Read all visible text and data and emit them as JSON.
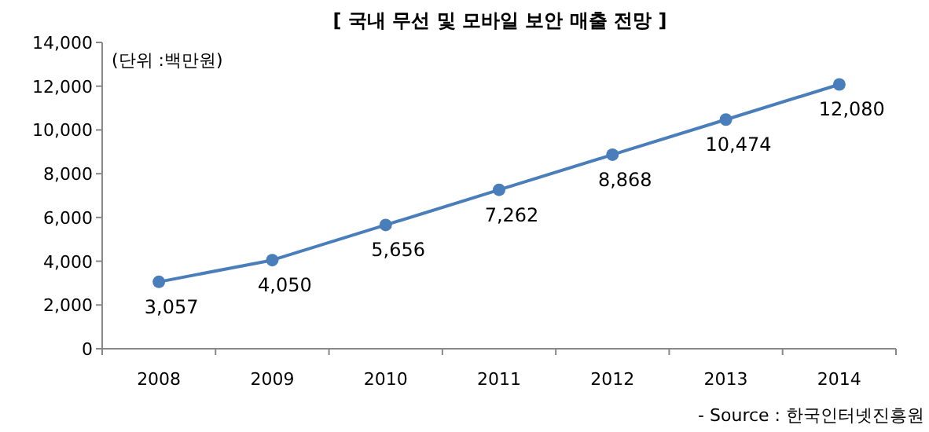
{
  "chart_data": {
    "type": "line",
    "title": "[ 국내 무선 및 모바일 보안 매출 전망 ]",
    "annotations": [
      "(단위 :백만원)",
      "- Source : 한국인터넷진흥원"
    ],
    "categories": [
      "2008",
      "2009",
      "2010",
      "2011",
      "2012",
      "2013",
      "2014"
    ],
    "values": [
      3057,
      4050,
      5656,
      7262,
      8868,
      10474,
      12080
    ],
    "value_labels": [
      "3,057",
      "4,050",
      "5,656",
      "7,262",
      "8,868",
      "10,474",
      "12,080"
    ],
    "color": "#4a7ebb",
    "marker": "circle",
    "line_style": "solid",
    "ylim": [
      0,
      14000
    ],
    "yticks": [
      0,
      {
        "value": 2000,
        "label": "2,000"
      },
      {
        "value": 4000,
        "label": "4,000"
      },
      {
        "value": 6000,
        "label": "6,000"
      },
      {
        "value": 8000,
        "label": "8,000"
      },
      {
        "value": 10000,
        "label": "10,000"
      },
      {
        "value": 12000,
        "label": "12,000"
      },
      {
        "value": 14000,
        "label": "14,000"
      }
    ]
  }
}
